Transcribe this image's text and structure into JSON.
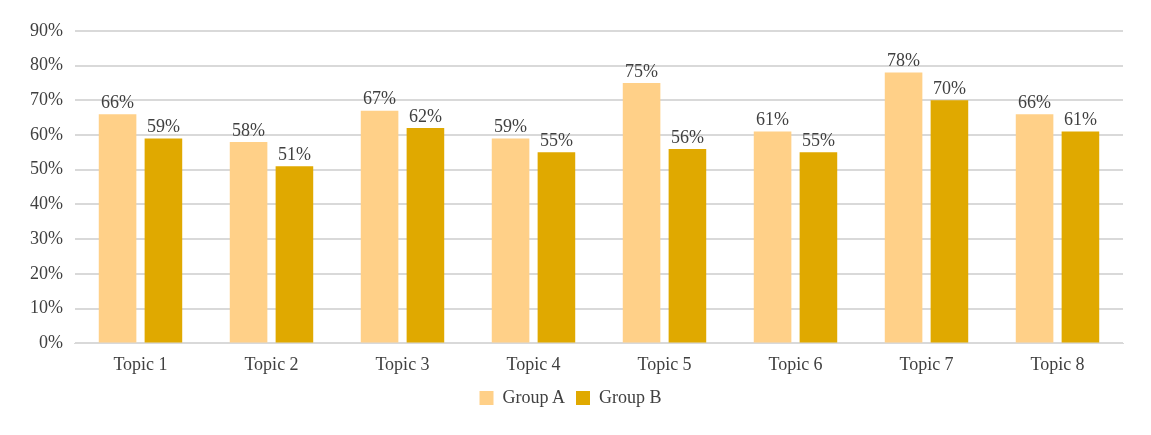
{
  "chart_data": {
    "type": "bar",
    "categories": [
      "Topic 1",
      "Topic 2",
      "Topic 3",
      "Topic 4",
      "Topic 5",
      "Topic 6",
      "Topic 7",
      "Topic 8"
    ],
    "series": [
      {
        "name": "Group A",
        "color": "#ffd088",
        "values": [
          66,
          58,
          67,
          59,
          75,
          61,
          78,
          66
        ],
        "value_labels": [
          "66%",
          "58%",
          "67%",
          "59%",
          "75%",
          "61%",
          "78%",
          "66%"
        ]
      },
      {
        "name": "Group B",
        "color": "#e0a900",
        "values": [
          59,
          51,
          62,
          55,
          56,
          55,
          70,
          61
        ],
        "value_labels": [
          "59%",
          "51%",
          "62%",
          "55%",
          "56%",
          "55%",
          "70%",
          "61%"
        ]
      }
    ],
    "ylim": [
      0,
      90
    ],
    "yticks": [
      {
        "value": 0,
        "label": "0%"
      },
      {
        "value": 10,
        "label": "10%"
      },
      {
        "value": 20,
        "label": "20%"
      },
      {
        "value": 30,
        "label": "30%"
      },
      {
        "value": 40,
        "label": "40%"
      },
      {
        "value": 50,
        "label": "50%"
      },
      {
        "value": 60,
        "label": "60%"
      },
      {
        "value": 70,
        "label": "70%"
      },
      {
        "value": 80,
        "label": "80%"
      },
      {
        "value": 90,
        "label": "90%"
      }
    ],
    "grid": "y",
    "legend": "bottom"
  }
}
